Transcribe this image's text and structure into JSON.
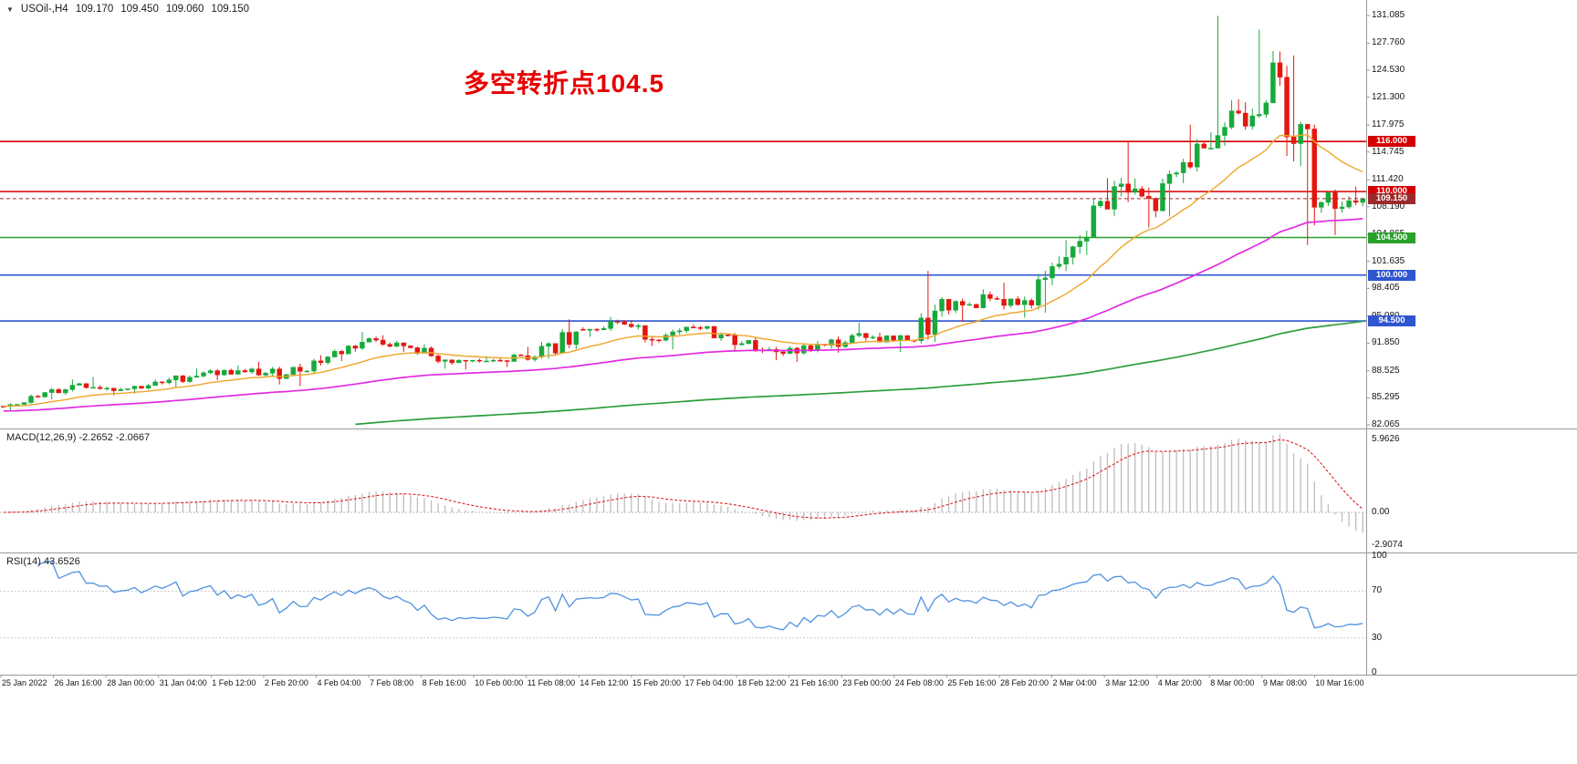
{
  "window": {
    "symbol_line": {
      "symbol": "USOil-,H4",
      "open": "109.170",
      "high": "109.450",
      "low": "109.060",
      "close": "109.150"
    }
  },
  "colors": {
    "background": "#ffffff",
    "up_candle": "#18a93c",
    "down_candle": "#e3170e",
    "ma_fast": "#efa52c",
    "ma_mid": "#e22ce2",
    "ma_slow": "#2e9e3e",
    "level_red": "#d40000",
    "level_green": "#2aa12a",
    "level_blue": "#2f55cf",
    "price_badge": "#9c2a2a",
    "macd_hist": "#bdbdbd",
    "macd_signal": "#dd2222",
    "rsi_line": "#4f92e0",
    "axis_text": "#141414",
    "frame": "#9a9a9a",
    "annotation_red": "#e60000"
  },
  "chart_data": {
    "type": "candlestick",
    "symbol": "USOil",
    "timeframe": "H4",
    "annotation": {
      "text": "多空转折点104.5",
      "price_reference": 104.5
    },
    "price_axis": {
      "ticks": [
        "131.085",
        "127.760",
        "124.530",
        "121.300",
        "117.975",
        "114.745",
        "111.420",
        "108.190",
        "104.865",
        "101.635",
        "98.405",
        "95.080",
        "91.850",
        "88.525",
        "85.295",
        "82.065"
      ],
      "range": [
        82.065,
        131.085
      ]
    },
    "current_price": {
      "value": 109.15,
      "label": "109.150"
    },
    "levels": [
      {
        "value": 116.0,
        "label": "116.000",
        "color_key": "level_red"
      },
      {
        "value": 110.0,
        "label": "110.000",
        "color_key": "level_red"
      },
      {
        "value": 104.5,
        "label": "104.500",
        "color_key": "level_green"
      },
      {
        "value": 100.0,
        "label": "100.000",
        "color_key": "level_blue"
      },
      {
        "value": 94.5,
        "label": "94.500",
        "color_key": "level_blue"
      }
    ],
    "moving_averages": [
      {
        "name": "fast",
        "period": 20,
        "color_key": "ma_fast"
      },
      {
        "name": "mid",
        "period": 79,
        "color_key": "ma_mid"
      },
      {
        "name": "slow",
        "period": 285,
        "color_key": "ma_slow"
      }
    ],
    "bars_per_day": 6,
    "daily_ohlc": [
      {
        "d": "25 Jan",
        "o": 84.3,
        "h": 85.7,
        "l": 83.8,
        "c": 85.4
      },
      {
        "d": "26 Jan",
        "o": 85.4,
        "h": 87.5,
        "l": 85.1,
        "c": 87.0
      },
      {
        "d": "27 Jan",
        "o": 87.0,
        "h": 87.8,
        "l": 85.6,
        "c": 86.3
      },
      {
        "d": "28 Jan",
        "o": 86.3,
        "h": 87.5,
        "l": 85.8,
        "c": 87.1
      },
      {
        "d": "31 Jan",
        "o": 87.1,
        "h": 88.8,
        "l": 86.6,
        "c": 88.3
      },
      {
        "d": "1 Feb",
        "o": 88.3,
        "h": 89.2,
        "l": 87.4,
        "c": 88.4
      },
      {
        "d": "2 Feb",
        "o": 88.4,
        "h": 89.6,
        "l": 86.9,
        "c": 88.1
      },
      {
        "d": "3 Feb",
        "o": 88.1,
        "h": 90.4,
        "l": 86.7,
        "c": 90.2
      },
      {
        "d": "4 Feb",
        "o": 90.2,
        "h": 93.2,
        "l": 89.7,
        "c": 92.4
      },
      {
        "d": "7 Feb",
        "o": 92.4,
        "h": 92.8,
        "l": 90.8,
        "c": 91.3
      },
      {
        "d": "8 Feb",
        "o": 91.3,
        "h": 91.7,
        "l": 88.8,
        "c": 89.5
      },
      {
        "d": "9 Feb",
        "o": 89.5,
        "h": 90.3,
        "l": 88.7,
        "c": 89.8
      },
      {
        "d": "10 Feb",
        "o": 89.8,
        "h": 91.4,
        "l": 89.0,
        "c": 90.2
      },
      {
        "d": "11 Feb",
        "o": 90.2,
        "h": 94.7,
        "l": 90.0,
        "c": 93.2
      },
      {
        "d": "14 Feb",
        "o": 93.5,
        "h": 95.0,
        "l": 92.6,
        "c": 94.4
      },
      {
        "d": "15 Feb",
        "o": 94.4,
        "h": 94.6,
        "l": 91.5,
        "c": 92.2
      },
      {
        "d": "16 Feb",
        "o": 92.2,
        "h": 94.1,
        "l": 91.1,
        "c": 93.6
      },
      {
        "d": "17 Feb",
        "o": 93.6,
        "h": 93.9,
        "l": 90.9,
        "c": 91.8
      },
      {
        "d": "18 Feb",
        "o": 91.8,
        "h": 92.6,
        "l": 89.8,
        "c": 90.6
      },
      {
        "d": "21 Feb",
        "o": 90.6,
        "h": 92.1,
        "l": 89.6,
        "c": 91.6
      },
      {
        "d": "22 Feb",
        "o": 91.6,
        "h": 94.3,
        "l": 90.7,
        "c": 92.5
      },
      {
        "d": "23 Feb",
        "o": 92.5,
        "h": 93.1,
        "l": 90.8,
        "c": 92.2
      },
      {
        "d": "24 Feb",
        "o": 92.2,
        "h": 100.5,
        "l": 91.8,
        "c": 95.8
      },
      {
        "d": "25 Feb",
        "o": 95.8,
        "h": 98.3,
        "l": 94.4,
        "c": 97.2
      },
      {
        "d": "28 Feb",
        "o": 97.2,
        "h": 99.1,
        "l": 94.9,
        "c": 96.4
      },
      {
        "d": "1 Mar",
        "o": 96.4,
        "h": 104.2,
        "l": 95.5,
        "c": 103.4
      },
      {
        "d": "2 Mar",
        "o": 103.4,
        "h": 111.6,
        "l": 102.4,
        "c": 110.6
      },
      {
        "d": "3 Mar",
        "o": 110.6,
        "h": 116.1,
        "l": 105.7,
        "c": 107.7
      },
      {
        "d": "4 Mar",
        "o": 107.7,
        "h": 118.0,
        "l": 107.0,
        "c": 115.7
      },
      {
        "d": "7 Mar",
        "o": 115.7,
        "h": 131.05,
        "l": 115.2,
        "c": 119.4
      },
      {
        "d": "8 Mar",
        "o": 119.4,
        "h": 129.4,
        "l": 117.4,
        "c": 123.7
      },
      {
        "d": "9 Mar",
        "o": 123.7,
        "h": 126.3,
        "l": 103.6,
        "c": 108.7
      },
      {
        "d": "10 Mar",
        "o": 108.7,
        "h": 110.6,
        "l": 104.8,
        "c": 109.15
      }
    ],
    "time_axis": [
      "25 Jan 2022",
      "26 Jan 16:00",
      "28 Jan 00:00",
      "31 Jan 04:00",
      "1 Feb 12:00",
      "2 Feb 20:00",
      "4 Feb 04:00",
      "7 Feb 08:00",
      "8 Feb 16:00",
      "10 Feb 00:00",
      "11 Feb 08:00",
      "14 Feb 12:00",
      "15 Feb 20:00",
      "17 Feb 04:00",
      "18 Feb 12:00",
      "21 Feb 16:00",
      "23 Feb 00:00",
      "24 Feb 08:00",
      "25 Feb 16:00",
      "28 Feb 20:00",
      "2 Mar 04:00",
      "3 Mar 12:00",
      "4 Mar 20:00",
      "8 Mar 00:00",
      "9 Mar 08:00",
      "10 Mar 16:00"
    ],
    "indicators": {
      "macd": {
        "label": "MACD(12,26,9) -2.2652 -2.0667",
        "fast": 12,
        "slow": 26,
        "signal": 9,
        "value": -2.2652,
        "signal_value": -2.0667,
        "axis": [
          "5.9626",
          "0.00",
          "-2.9074"
        ],
        "range": [
          -2.9074,
          5.9626
        ]
      },
      "rsi": {
        "label": "RSI(14) 43.6526",
        "period": 14,
        "value": 43.6526,
        "axis": [
          "100",
          "70",
          "30",
          "0"
        ],
        "bands": [
          70,
          30
        ],
        "range": [
          0,
          100
        ]
      }
    }
  }
}
